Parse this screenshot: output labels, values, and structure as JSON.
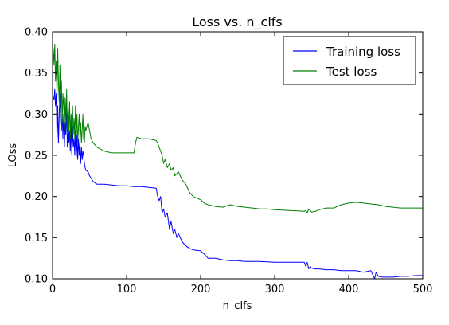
{
  "chart_data": {
    "type": "line",
    "title": "Loss vs. n_clfs",
    "xlabel": "n_clfs",
    "ylabel": "LOss",
    "xlim": [
      0,
      500
    ],
    "ylim": [
      0.1,
      0.4
    ],
    "xticks": [
      0,
      100,
      200,
      300,
      400,
      500
    ],
    "xtick_labels": [
      "0",
      "100",
      "200",
      "300",
      "400",
      "500"
    ],
    "yticks": [
      0.1,
      0.15,
      0.2,
      0.25,
      0.3,
      0.35,
      0.4
    ],
    "ytick_labels": [
      "0.10",
      "0.15",
      "0.20",
      "0.25",
      "0.30",
      "0.35",
      "0.40"
    ],
    "grid": false,
    "legend_position": "top-right",
    "series": [
      {
        "name": "Training loss",
        "color": "#0000ff",
        "x": [
          0,
          1,
          2,
          3,
          4,
          5,
          6,
          7,
          8,
          9,
          10,
          11,
          12,
          13,
          14,
          15,
          16,
          17,
          18,
          19,
          20,
          21,
          22,
          23,
          24,
          25,
          26,
          27,
          28,
          29,
          30,
          31,
          32,
          33,
          34,
          35,
          36,
          37,
          38,
          39,
          40,
          41,
          42,
          43,
          44,
          45,
          48,
          50,
          52,
          55,
          60,
          70,
          80,
          90,
          100,
          110,
          120,
          130,
          140,
          142,
          144,
          146,
          148,
          150,
          152,
          155,
          158,
          160,
          163,
          165,
          168,
          170,
          175,
          180,
          185,
          190,
          200,
          205,
          210,
          220,
          230,
          240,
          250,
          260,
          280,
          300,
          320,
          340,
          342,
          344,
          346,
          348,
          350,
          355,
          360,
          370,
          380,
          390,
          400,
          410,
          420,
          430,
          435,
          437,
          440,
          445,
          450,
          460,
          470,
          480,
          490,
          500
        ],
        "y": [
          0.325,
          0.32,
          0.318,
          0.33,
          0.31,
          0.325,
          0.27,
          0.31,
          0.265,
          0.3,
          0.325,
          0.29,
          0.28,
          0.305,
          0.27,
          0.3,
          0.26,
          0.29,
          0.275,
          0.31,
          0.26,
          0.3,
          0.265,
          0.28,
          0.255,
          0.29,
          0.25,
          0.285,
          0.26,
          0.27,
          0.25,
          0.28,
          0.248,
          0.275,
          0.245,
          0.27,
          0.25,
          0.265,
          0.24,
          0.26,
          0.245,
          0.255,
          0.25,
          0.24,
          0.235,
          0.232,
          0.23,
          0.225,
          0.222,
          0.218,
          0.215,
          0.215,
          0.214,
          0.213,
          0.213,
          0.212,
          0.212,
          0.211,
          0.21,
          0.2,
          0.195,
          0.2,
          0.18,
          0.185,
          0.175,
          0.18,
          0.16,
          0.17,
          0.155,
          0.16,
          0.15,
          0.155,
          0.145,
          0.14,
          0.137,
          0.135,
          0.134,
          0.13,
          0.125,
          0.125,
          0.123,
          0.122,
          0.122,
          0.121,
          0.121,
          0.12,
          0.12,
          0.12,
          0.115,
          0.12,
          0.112,
          0.115,
          0.113,
          0.112,
          0.112,
          0.111,
          0.111,
          0.11,
          0.11,
          0.11,
          0.108,
          0.11,
          0.1,
          0.108,
          0.103,
          0.102,
          0.102,
          0.102,
          0.103,
          0.103,
          0.104,
          0.104
        ]
      },
      {
        "name": "Test loss",
        "color": "#008000",
        "x": [
          0,
          1,
          2,
          3,
          4,
          5,
          6,
          7,
          8,
          9,
          10,
          11,
          12,
          13,
          14,
          15,
          16,
          17,
          18,
          19,
          20,
          21,
          22,
          23,
          24,
          25,
          26,
          27,
          28,
          29,
          30,
          31,
          32,
          33,
          34,
          35,
          36,
          37,
          38,
          39,
          40,
          41,
          42,
          43,
          44,
          45,
          48,
          50,
          52,
          55,
          60,
          70,
          80,
          90,
          100,
          110,
          112,
          114,
          120,
          130,
          140,
          142,
          144,
          146,
          148,
          150,
          152,
          155,
          158,
          160,
          163,
          165,
          170,
          175,
          180,
          185,
          190,
          195,
          200,
          205,
          210,
          220,
          230,
          240,
          250,
          260,
          270,
          280,
          290,
          300,
          320,
          340,
          342,
          344,
          346,
          348,
          350,
          355,
          360,
          370,
          380,
          390,
          400,
          410,
          420,
          430,
          440,
          450,
          460,
          470,
          480,
          490,
          500
        ],
        "y": [
          0.38,
          0.38,
          0.36,
          0.385,
          0.34,
          0.365,
          0.32,
          0.38,
          0.34,
          0.315,
          0.36,
          0.3,
          0.34,
          0.29,
          0.325,
          0.31,
          0.28,
          0.32,
          0.29,
          0.33,
          0.275,
          0.31,
          0.28,
          0.315,
          0.27,
          0.3,
          0.285,
          0.31,
          0.275,
          0.295,
          0.27,
          0.31,
          0.275,
          0.3,
          0.265,
          0.285,
          0.3,
          0.27,
          0.29,
          0.265,
          0.28,
          0.3,
          0.27,
          0.265,
          0.285,
          0.28,
          0.29,
          0.28,
          0.27,
          0.265,
          0.26,
          0.255,
          0.253,
          0.253,
          0.253,
          0.253,
          0.265,
          0.272,
          0.27,
          0.27,
          0.268,
          0.265,
          0.26,
          0.255,
          0.25,
          0.24,
          0.245,
          0.235,
          0.24,
          0.232,
          0.235,
          0.225,
          0.23,
          0.22,
          0.215,
          0.205,
          0.2,
          0.198,
          0.196,
          0.192,
          0.19,
          0.188,
          0.187,
          0.19,
          0.188,
          0.187,
          0.186,
          0.185,
          0.185,
          0.184,
          0.183,
          0.182,
          0.183,
          0.18,
          0.185,
          0.183,
          0.181,
          0.182,
          0.184,
          0.186,
          0.186,
          0.19,
          0.192,
          0.193,
          0.192,
          0.191,
          0.19,
          0.188,
          0.187,
          0.186,
          0.186,
          0.186,
          0.186
        ]
      }
    ]
  }
}
